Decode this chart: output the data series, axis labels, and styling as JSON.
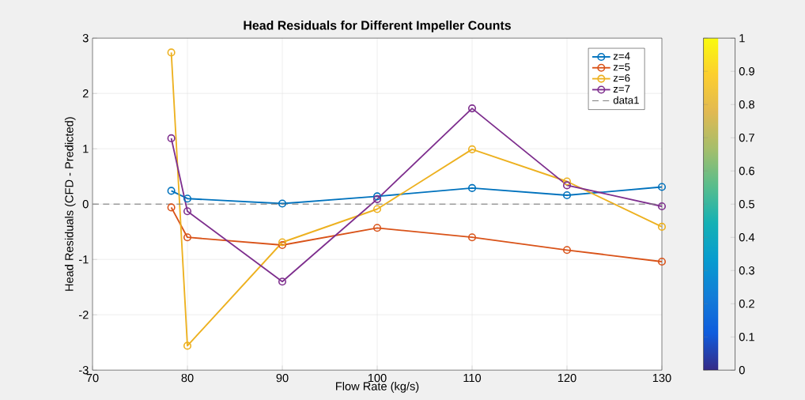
{
  "chart_data": {
    "type": "line",
    "title": "Head Residuals for Different Impeller Counts",
    "xlabel": "Flow Rate (kg/s)",
    "ylabel": "Head Residuals (CFD - Predicted)",
    "x": [
      78.3,
      80,
      90,
      100,
      110,
      120,
      130
    ],
    "series": [
      {
        "name": "z=4",
        "color": "#0072bd",
        "values": [
          0.24,
          0.1,
          0.01,
          0.14,
          0.29,
          0.16,
          0.31
        ]
      },
      {
        "name": "z=5",
        "color": "#d95319",
        "values": [
          -0.06,
          -0.6,
          -0.74,
          -0.43,
          -0.6,
          -0.83,
          -1.04
        ]
      },
      {
        "name": "z=6",
        "color": "#edb120",
        "values": [
          2.74,
          -2.56,
          -0.69,
          -0.09,
          0.99,
          0.41,
          -0.41
        ]
      },
      {
        "name": "z=7",
        "color": "#7e2f8e",
        "values": [
          1.19,
          -0.13,
          -1.4,
          0.09,
          1.73,
          0.34,
          -0.04
        ]
      }
    ],
    "ref_lines": [
      {
        "axis": "y",
        "value": 0,
        "label": "data1",
        "color": "#808080",
        "line_style": "dashed"
      }
    ],
    "xlim": [
      70,
      130
    ],
    "xticks": [
      70,
      80,
      90,
      100,
      110,
      120,
      130
    ],
    "ylim": [
      -3,
      3
    ],
    "yticks": [
      -3,
      -2,
      -1,
      0,
      1,
      2,
      3
    ],
    "clim": [
      0,
      1
    ],
    "cticks": [
      0,
      0.1,
      0.2,
      0.3,
      0.4,
      0.5,
      0.6,
      0.7,
      0.8,
      0.9,
      1
    ],
    "grid": true,
    "legend": "top right",
    "marker": "circle",
    "line_style": "solid"
  }
}
